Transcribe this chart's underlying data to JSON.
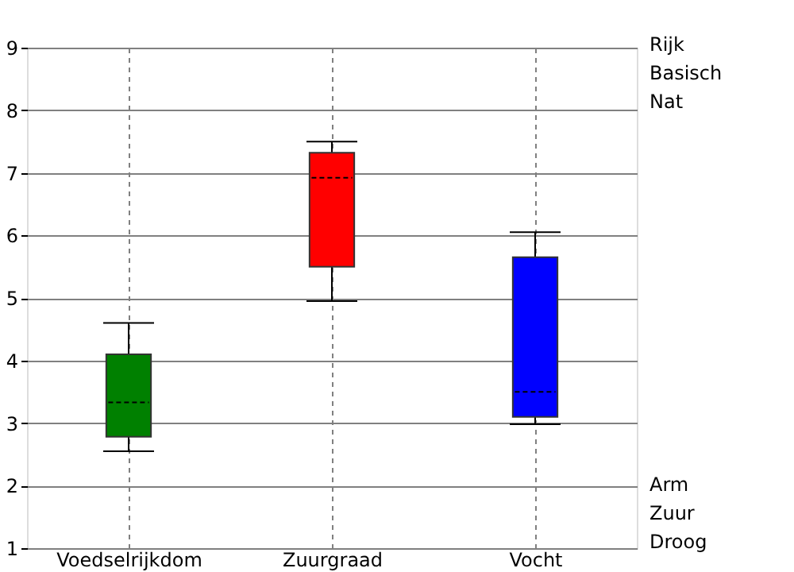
{
  "chart_data": {
    "type": "box",
    "categories": [
      "Voedselrijkdom",
      "Zuurgraad",
      "Vocht"
    ],
    "colors": [
      "#008000",
      "#ff0000",
      "#0000ff"
    ],
    "boxes": [
      {
        "low": 2.55,
        "q1": 2.78,
        "median": 3.33,
        "q3": 4.1,
        "high": 4.6
      },
      {
        "low": 4.95,
        "q1": 5.5,
        "median": 6.92,
        "q3": 7.32,
        "high": 7.5
      },
      {
        "low": 2.98,
        "q1": 3.1,
        "median": 3.5,
        "q3": 5.65,
        "high": 6.05
      }
    ],
    "ylim": [
      1,
      9
    ],
    "yticks": [
      1,
      2,
      3,
      4,
      5,
      6,
      7,
      8,
      9
    ],
    "grid": true,
    "annotations": [
      "Rijk",
      "Basisch",
      "Nat",
      "Arm",
      "Zuur",
      "Droog"
    ]
  }
}
